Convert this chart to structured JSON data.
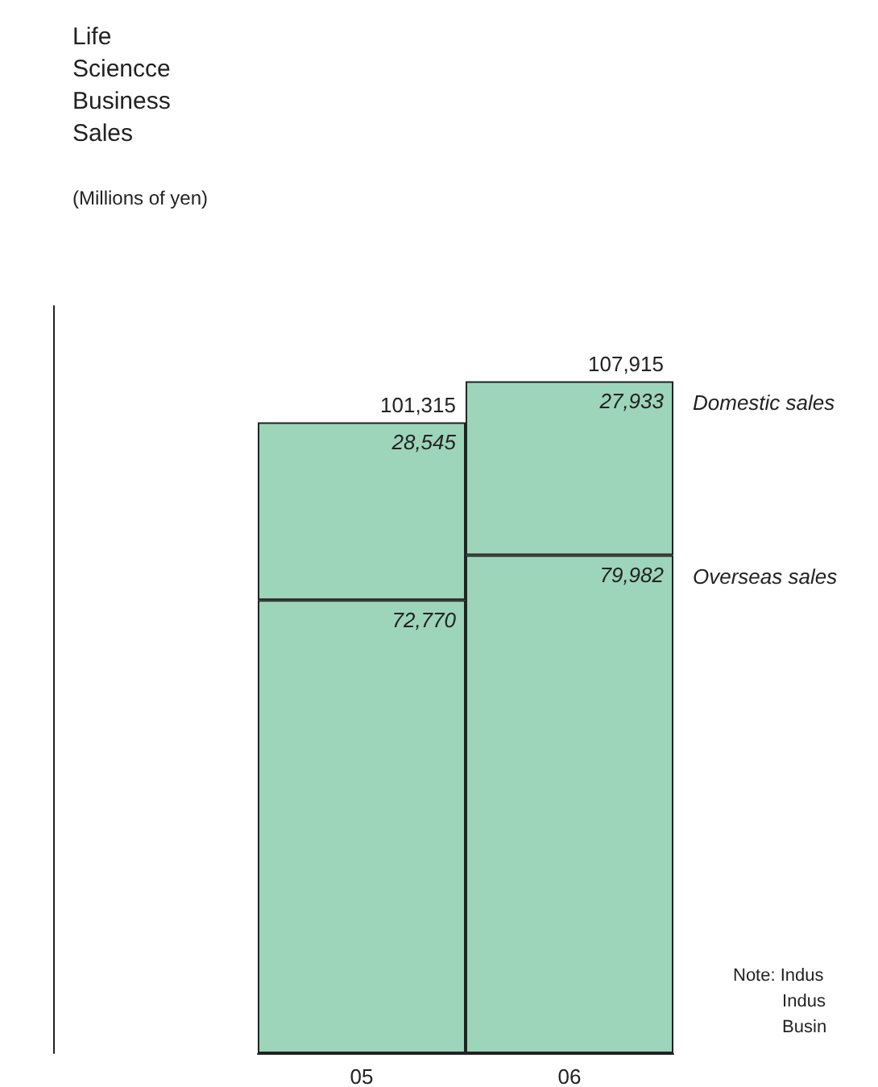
{
  "chart_data": {
    "type": "bar",
    "title": "Life\nSciencce\nBusiness\nSales",
    "subtitle": "(Millions of yen)",
    "categories": [
      "05",
      "06"
    ],
    "stacked": true,
    "legend": false,
    "grid": false,
    "series": [
      {
        "name": "Overseas sales",
        "color": "#9dd5bb",
        "values": [
          72770,
          79982
        ],
        "value_labels": [
          "72,770",
          "79,982"
        ]
      },
      {
        "name": "Domestic sales",
        "color": "#9dd5bb",
        "values": [
          28545,
          27933
        ],
        "value_labels": [
          "28,545",
          "27,933"
        ]
      }
    ],
    "totals": [
      "101,315",
      "107,915"
    ],
    "annotations": [
      "Note: Indus\n          Indus\n          Busin"
    ]
  }
}
